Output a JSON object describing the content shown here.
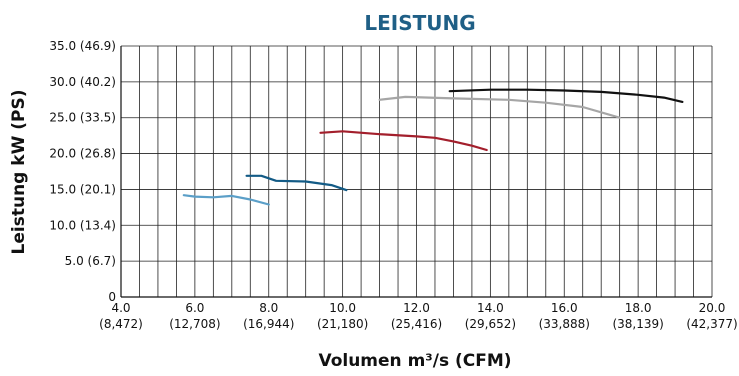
{
  "chart_data": {
    "type": "line",
    "title": "LEISTUNG",
    "xlabel": "Volumen m³/s (CFM)",
    "ylabel": "Leistung kW (PS)",
    "xlim": [
      4.0,
      20.0
    ],
    "ylim": [
      0,
      35.0
    ],
    "grid": true,
    "x_ticks": [
      {
        "value": 4.0,
        "label": "4.0",
        "sublabel": "(8,472)"
      },
      {
        "value": 6.0,
        "label": "6.0",
        "sublabel": "(12,708)"
      },
      {
        "value": 8.0,
        "label": "8.0",
        "sublabel": "(16,944)"
      },
      {
        "value": 10.0,
        "label": "10.0",
        "sublabel": "(21,180)"
      },
      {
        "value": 12.0,
        "label": "12.0",
        "sublabel": "(25,416)"
      },
      {
        "value": 14.0,
        "label": "14.0",
        "sublabel": "(29,652)"
      },
      {
        "value": 16.0,
        "label": "16.0",
        "sublabel": "(33,888)"
      },
      {
        "value": 18.0,
        "label": "18.0",
        "sublabel": "(38,139)"
      },
      {
        "value": 20.0,
        "label": "20.0",
        "sublabel": "(42,377)"
      }
    ],
    "y_ticks": [
      {
        "value": 0,
        "label": "0"
      },
      {
        "value": 5.0,
        "label": "5.0 (6.7)"
      },
      {
        "value": 10.0,
        "label": "10.0 (13.4)"
      },
      {
        "value": 15.0,
        "label": "15.0 (20.1)"
      },
      {
        "value": 20.0,
        "label": "20.0 (26.8)"
      },
      {
        "value": 25.0,
        "label": "25.0 (33.5)"
      },
      {
        "value": 30.0,
        "label": "30.0 (40.2)"
      },
      {
        "value": 35.0,
        "label": "35.0 (46.9)"
      }
    ],
    "series": [
      {
        "color": "#5b9fc8",
        "x": [
          5.7,
          6.0,
          6.5,
          7.0,
          7.5,
          8.0
        ],
        "y": [
          14.2,
          14.0,
          13.9,
          14.1,
          13.6,
          12.9
        ]
      },
      {
        "color": "#135b86",
        "x": [
          7.4,
          7.8,
          8.2,
          9.0,
          9.7,
          10.1
        ],
        "y": [
          16.9,
          16.9,
          16.2,
          16.1,
          15.6,
          14.9
        ]
      },
      {
        "color": "#a31f2c",
        "x": [
          9.4,
          10.0,
          11.0,
          12.0,
          12.5,
          13.0,
          13.5,
          13.9
        ],
        "y": [
          22.9,
          23.1,
          22.7,
          22.4,
          22.2,
          21.7,
          21.1,
          20.5
        ]
      },
      {
        "color": "#a6a6a6",
        "x": [
          11.0,
          11.7,
          13.0,
          14.5,
          15.5,
          16.5,
          17.5
        ],
        "y": [
          27.5,
          27.9,
          27.7,
          27.5,
          27.1,
          26.5,
          25.0
        ]
      },
      {
        "color": "#111111",
        "x": [
          12.9,
          14.0,
          15.0,
          16.0,
          17.0,
          18.0,
          18.7,
          19.2
        ],
        "y": [
          28.7,
          28.9,
          28.9,
          28.8,
          28.6,
          28.2,
          27.8,
          27.2
        ]
      }
    ]
  }
}
